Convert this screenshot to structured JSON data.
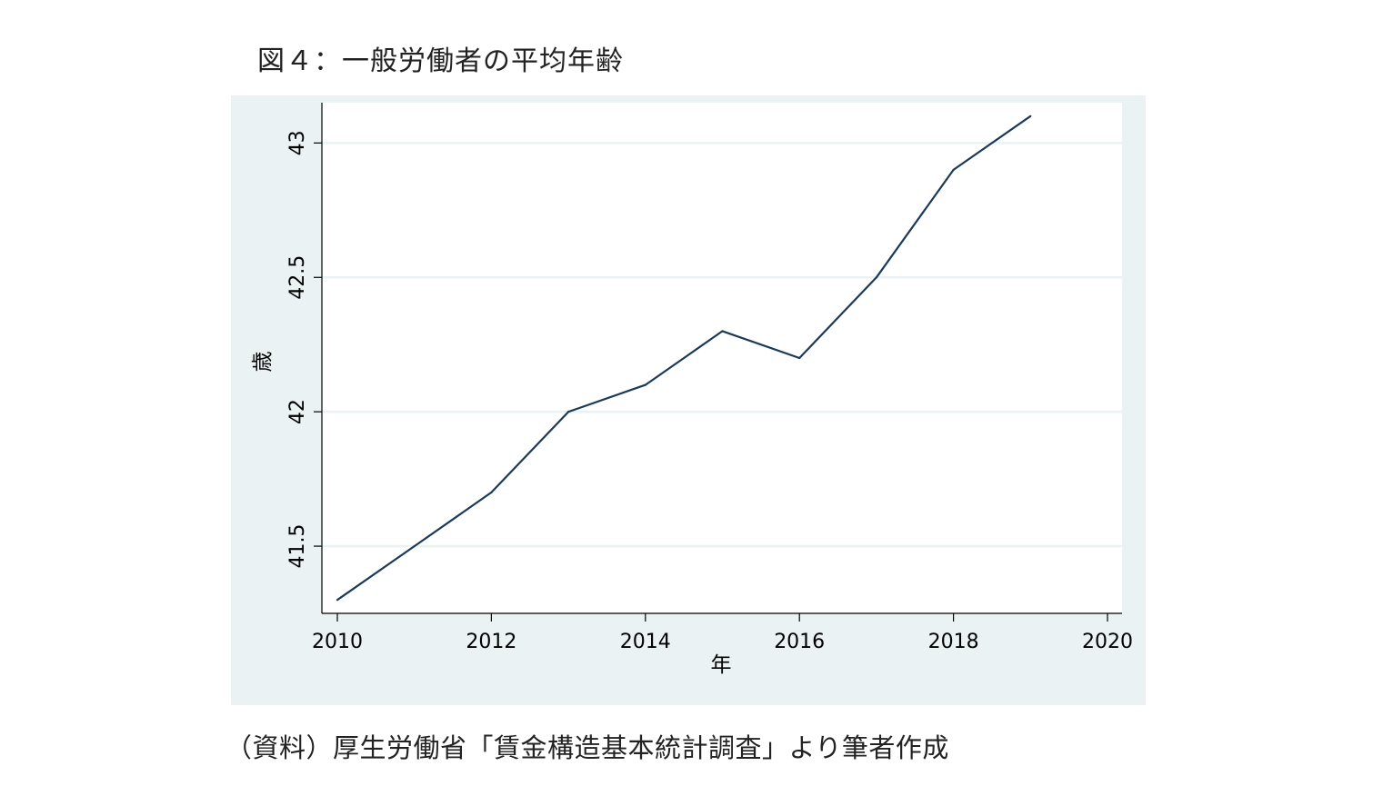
{
  "figure": {
    "title": "図４：一般労働者の平均年齢",
    "source": "（資料）厚生労働省「賃金構造基本統計調査」より筆者作成"
  },
  "chart_data": {
    "type": "line",
    "title": "",
    "xlabel": "年",
    "ylabel": "歳",
    "xlim": [
      2010,
      2020
    ],
    "ylim": [
      41.25,
      43.15
    ],
    "xticks": [
      2010,
      2012,
      2014,
      2016,
      2018,
      2020
    ],
    "xtick_labels": [
      "2010",
      "2012",
      "2014",
      "2016",
      "2018",
      "2020"
    ],
    "yticks": [
      41.5,
      42,
      42.5,
      43
    ],
    "ytick_labels": [
      "41.5",
      "42",
      "42.5",
      "43"
    ],
    "grid": "horizontal",
    "series": [
      {
        "x": [
          2010,
          2011,
          2012,
          2013,
          2014,
          2015,
          2016,
          2017,
          2018,
          2019
        ],
        "y": [
          41.3,
          41.5,
          41.7,
          42.0,
          42.1,
          42.3,
          42.2,
          42.5,
          42.9,
          43.1
        ]
      }
    ],
    "colors": {
      "line": "#1b3a57",
      "background": "#eaf2f3",
      "plot_area": "#ffffff",
      "grid": "#eaf2f3"
    }
  }
}
